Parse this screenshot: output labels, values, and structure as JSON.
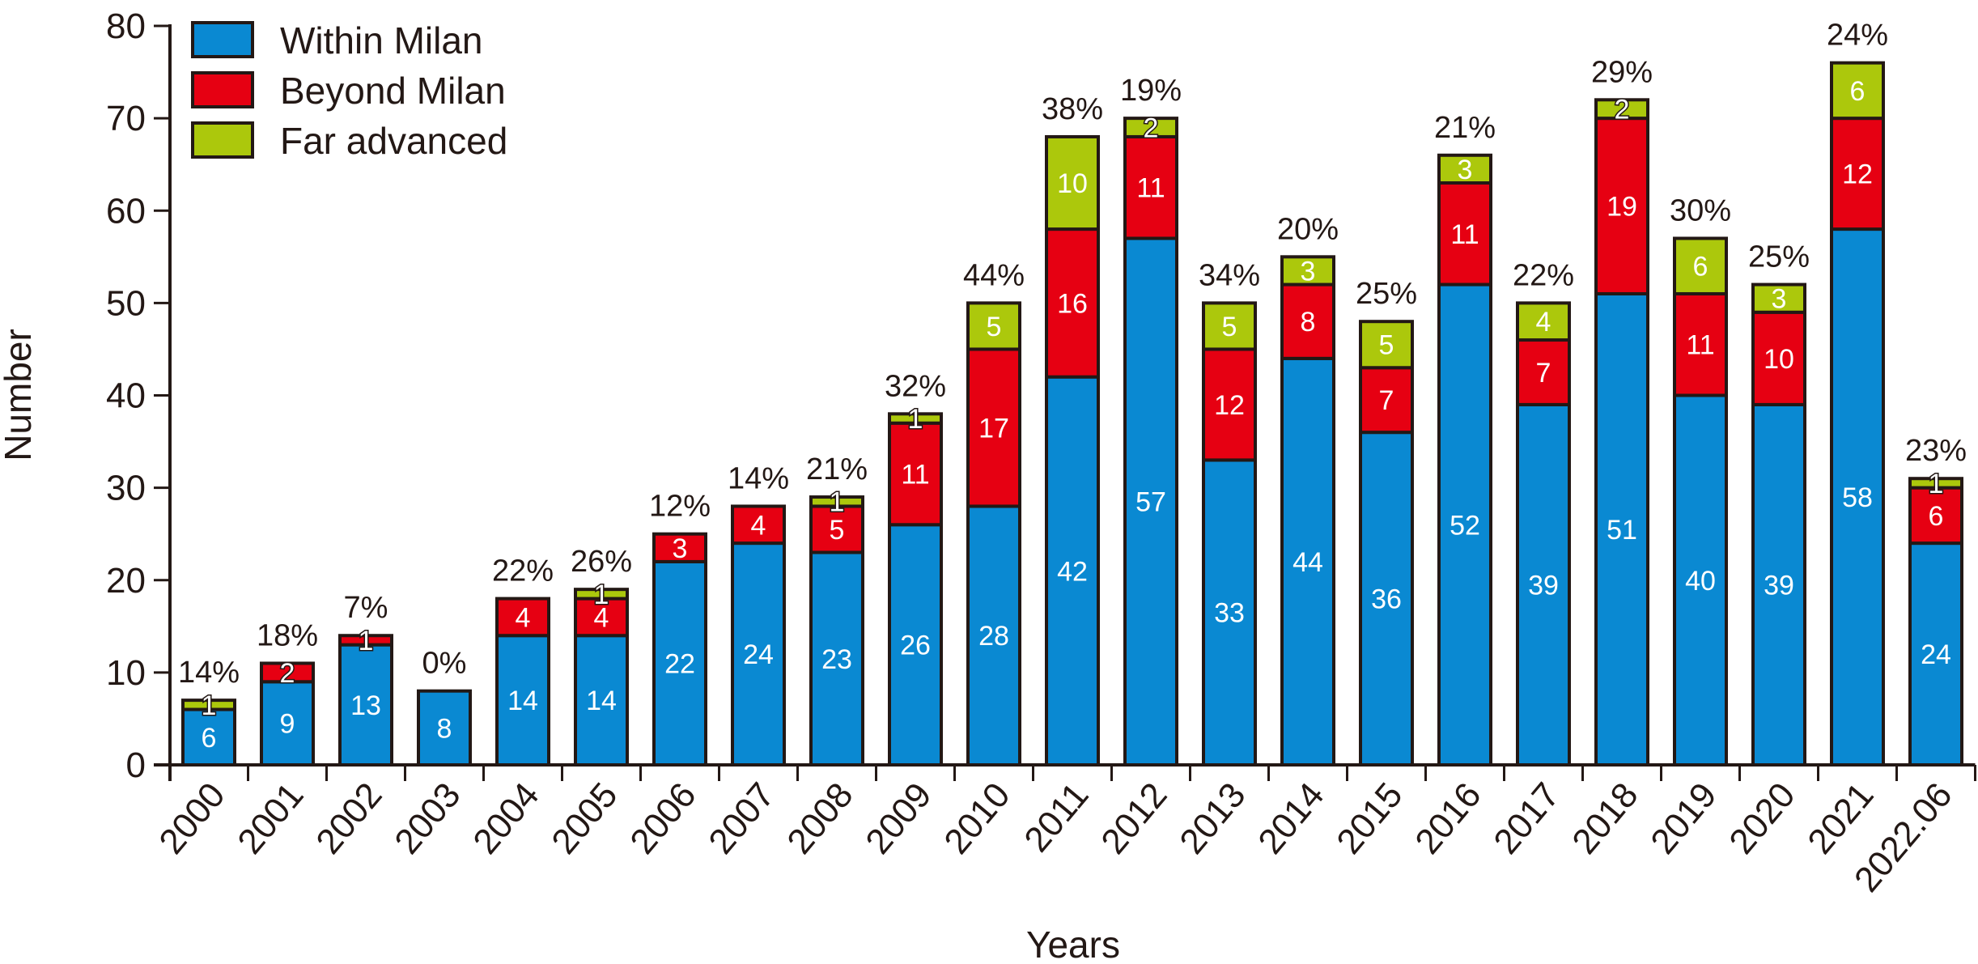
{
  "chart_data": {
    "type": "bar",
    "stacked": true,
    "title": "",
    "xlabel": "Years",
    "ylabel": "Number",
    "ylim": [
      0,
      80
    ],
    "yticks": [
      0,
      10,
      20,
      30,
      40,
      50,
      60,
      70,
      80
    ],
    "grid": false,
    "legend_position": "top-left",
    "categories": [
      "2000",
      "2001",
      "2002",
      "2003",
      "2004",
      "2005",
      "2006",
      "2007",
      "2008",
      "2009",
      "2010",
      "2011",
      "2012",
      "2013",
      "2014",
      "2015",
      "2016",
      "2017",
      "2018",
      "2019",
      "2020",
      "2021",
      "2022.06"
    ],
    "series": [
      {
        "name": "Within Milan",
        "color": "#0a89d2",
        "values": [
          6,
          9,
          13,
          8,
          14,
          14,
          22,
          24,
          23,
          26,
          28,
          42,
          57,
          33,
          44,
          36,
          52,
          39,
          51,
          40,
          39,
          58,
          24
        ]
      },
      {
        "name": "Beyond Milan",
        "color": "#e60012",
        "values": [
          0,
          2,
          1,
          0,
          4,
          4,
          3,
          4,
          5,
          11,
          17,
          16,
          11,
          12,
          8,
          7,
          11,
          7,
          19,
          11,
          10,
          12,
          6
        ]
      },
      {
        "name": "Far advanced",
        "color": "#acc80c",
        "values": [
          1,
          0,
          0,
          0,
          0,
          1,
          0,
          0,
          1,
          1,
          5,
          10,
          2,
          5,
          3,
          5,
          3,
          4,
          2,
          6,
          3,
          6,
          1
        ]
      }
    ],
    "annotations": [
      "14%",
      "18%",
      "7%",
      "0%",
      "22%",
      "26%",
      "12%",
      "14%",
      "21%",
      "32%",
      "44%",
      "38%",
      "19%",
      "34%",
      "20%",
      "25%",
      "21%",
      "22%",
      "29%",
      "30%",
      "25%",
      "24%",
      "23%"
    ]
  }
}
